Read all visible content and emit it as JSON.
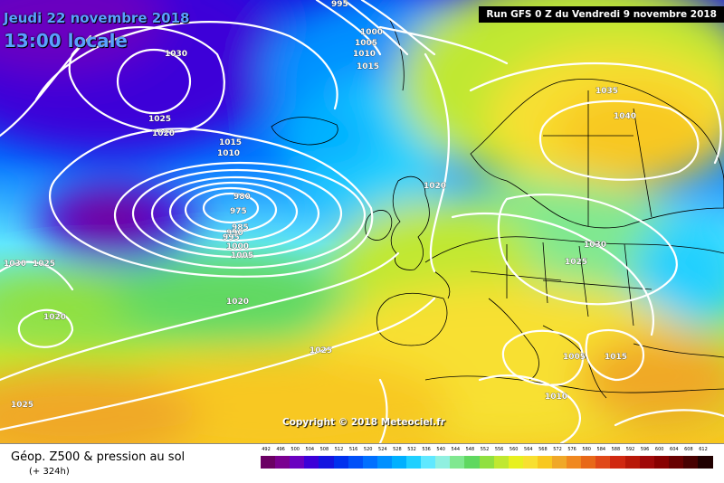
{
  "header": {
    "date": "Jeudi 22 novembre 2018",
    "local_time": "13:00 locale",
    "run": "Run GFS 0 Z du Vendredi 9 novembre 2018"
  },
  "footer": {
    "title": "Géop. Z500 & pression au sol",
    "subtitle": "(+ 324h)",
    "copyright": "Copyright © 2018 Meteociel.fr"
  },
  "isobar_labels": [
    "995",
    "1000",
    "1005",
    "1010",
    "1015",
    "1030",
    "1025",
    "1020",
    "1015",
    "1010",
    "980",
    "975",
    "985",
    "990",
    "995",
    "1000",
    "1005",
    "1030",
    "1025",
    "1020",
    "1020",
    "1025",
    "1025",
    "1035",
    "1040",
    "1030",
    "1025",
    "1020",
    "1005",
    "1015",
    "1010"
  ],
  "legend": {
    "values": [
      "492",
      "496",
      "500",
      "504",
      "508",
      "512",
      "516",
      "520",
      "524",
      "528",
      "532",
      "536",
      "540",
      "544",
      "548",
      "552",
      "556",
      "560",
      "564",
      "568",
      "572",
      "576",
      "580",
      "584",
      "588",
      "592",
      "596",
      "600",
      "604",
      "608",
      "612"
    ],
    "colors": [
      "#6b0064",
      "#7a0090",
      "#6a00c0",
      "#3c00d8",
      "#1414e0",
      "#0030ee",
      "#0050f8",
      "#0070ff",
      "#0090ff",
      "#00b0ff",
      "#20d0ff",
      "#60e8ff",
      "#90f0e0",
      "#80e890",
      "#60d860",
      "#90e040",
      "#c0e830",
      "#e8f020",
      "#f8e030",
      "#f8c820",
      "#f0a828",
      "#f08820",
      "#e86818",
      "#e04818",
      "#d02810",
      "#b81808",
      "#a00808",
      "#880000",
      "#680000",
      "#480000",
      "#200000"
    ]
  }
}
